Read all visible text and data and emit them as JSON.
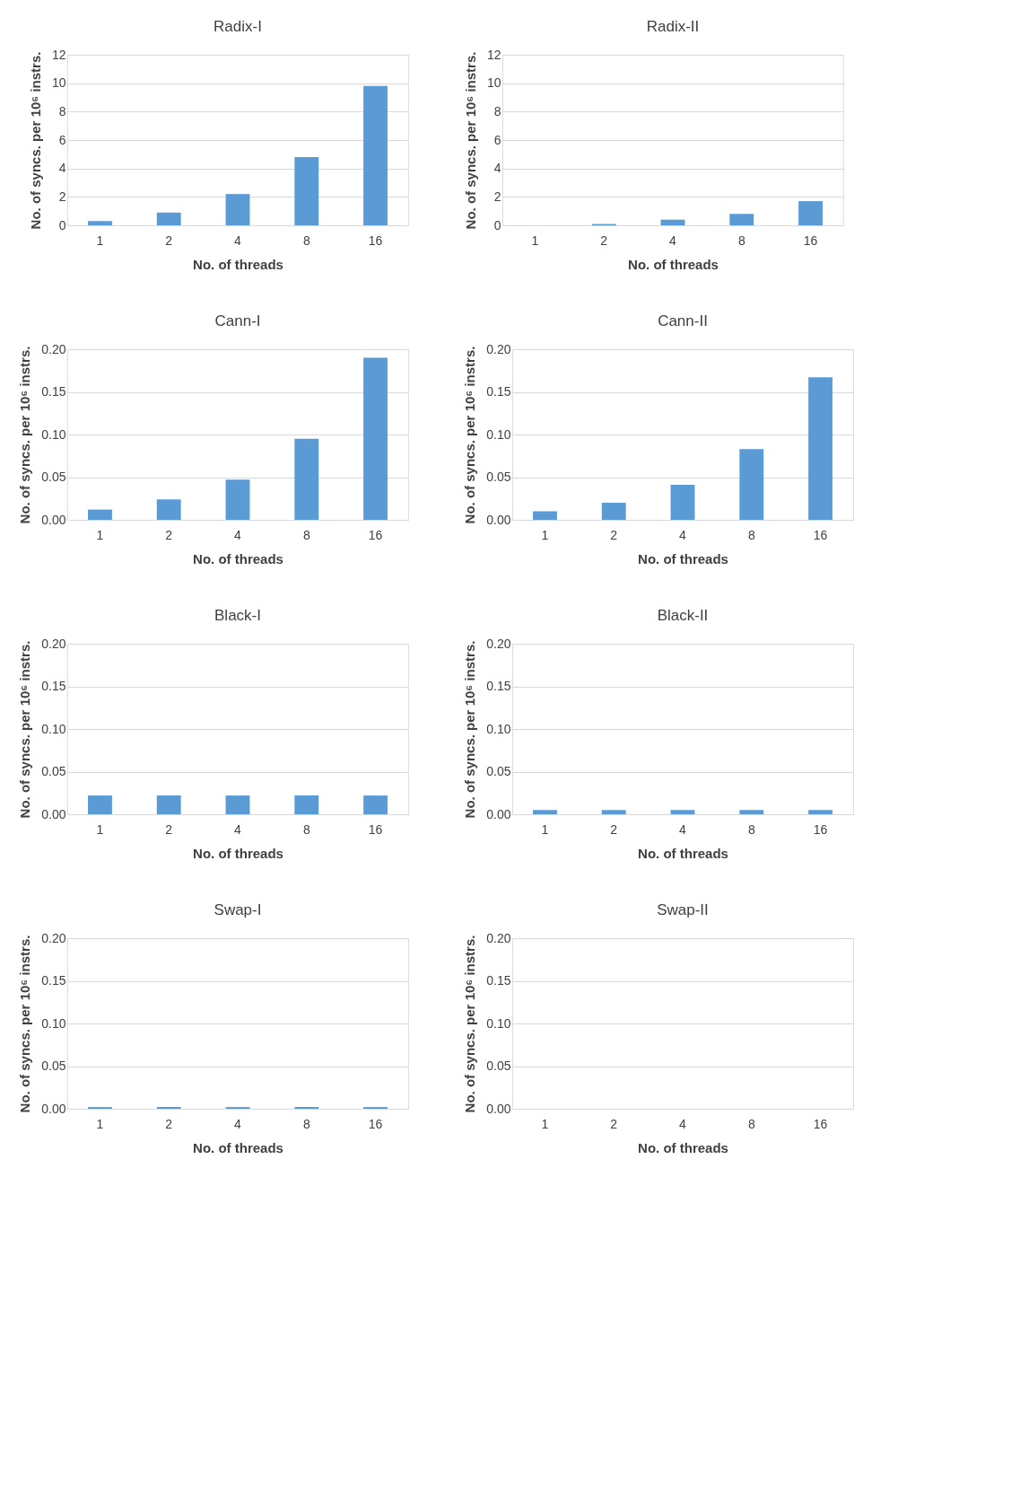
{
  "chart_data": [
    {
      "type": "bar",
      "title": "Radix-I",
      "categories": [
        "1",
        "2",
        "4",
        "8",
        "16"
      ],
      "values": [
        0.3,
        0.9,
        2.2,
        4.8,
        9.8
      ],
      "color": "#5b9bd5",
      "xlabel": "No. of threads",
      "ylabel": "No. of syncs. per 10⁶ instrs.",
      "ylim": [
        0,
        12
      ],
      "yticks": [
        0,
        2,
        4,
        6,
        8,
        10,
        12
      ],
      "grid": "y"
    },
    {
      "type": "bar",
      "title": "Radix-II",
      "categories": [
        "1",
        "2",
        "4",
        "8",
        "16"
      ],
      "values": [
        0,
        0.1,
        0.4,
        0.8,
        1.7
      ],
      "color": "#5b9bd5",
      "xlabel": "No. of threads",
      "ylabel": "No. of syncs. per 10⁶ instrs.",
      "ylim": [
        0,
        12
      ],
      "yticks": [
        0,
        2,
        4,
        6,
        8,
        10,
        12
      ],
      "grid": "y"
    },
    {
      "type": "bar",
      "title": "Cann-I",
      "categories": [
        "1",
        "2",
        "4",
        "8",
        "16"
      ],
      "values": [
        0.012,
        0.024,
        0.047,
        0.095,
        0.19
      ],
      "color": "#5b9bd5",
      "xlabel": "No. of threads",
      "ylabel": "No. of syncs. per 10⁶ instrs.",
      "ylim": [
        0,
        0.2
      ],
      "yticks": [
        {
          "value": 0,
          "label": "0.00"
        },
        {
          "value": 0.05,
          "label": "0.05"
        },
        {
          "value": 0.1,
          "label": "0.10"
        },
        {
          "value": 0.15,
          "label": "0.15"
        },
        {
          "value": 0.2,
          "label": "0.20"
        }
      ],
      "grid": "y"
    },
    {
      "type": "bar",
      "title": "Cann-II",
      "categories": [
        "1",
        "2",
        "4",
        "8",
        "16"
      ],
      "values": [
        0.01,
        0.02,
        0.041,
        0.083,
        0.167
      ],
      "color": "#5b9bd5",
      "xlabel": "No. of threads",
      "ylabel": "No. of syncs. per 10⁶ instrs.",
      "ylim": [
        0,
        0.2
      ],
      "yticks": [
        {
          "value": 0,
          "label": "0.00"
        },
        {
          "value": 0.05,
          "label": "0.05"
        },
        {
          "value": 0.1,
          "label": "0.10"
        },
        {
          "value": 0.15,
          "label": "0.15"
        },
        {
          "value": 0.2,
          "label": "0.20"
        }
      ],
      "grid": "y"
    },
    {
      "type": "bar",
      "title": "Black-I",
      "categories": [
        "1",
        "2",
        "4",
        "8",
        "16"
      ],
      "values": [
        0.022,
        0.022,
        0.022,
        0.022,
        0.022
      ],
      "color": "#5b9bd5",
      "xlabel": "No. of threads",
      "ylabel": "No. of syncs. per 10⁶ instrs.",
      "ylim": [
        0,
        0.2
      ],
      "yticks": [
        {
          "value": 0,
          "label": "0.00"
        },
        {
          "value": 0.05,
          "label": "0.05"
        },
        {
          "value": 0.1,
          "label": "0.10"
        },
        {
          "value": 0.15,
          "label": "0.15"
        },
        {
          "value": 0.2,
          "label": "0.20"
        }
      ],
      "grid": "y"
    },
    {
      "type": "bar",
      "title": "Black-II",
      "categories": [
        "1",
        "2",
        "4",
        "8",
        "16"
      ],
      "values": [
        0.005,
        0.005,
        0.005,
        0.005,
        0.005
      ],
      "color": "#5b9bd5",
      "xlabel": "No. of threads",
      "ylabel": "No. of syncs. per 10⁶ instrs.",
      "ylim": [
        0,
        0.2
      ],
      "yticks": [
        {
          "value": 0,
          "label": "0.00"
        },
        {
          "value": 0.05,
          "label": "0.05"
        },
        {
          "value": 0.1,
          "label": "0.10"
        },
        {
          "value": 0.15,
          "label": "0.15"
        },
        {
          "value": 0.2,
          "label": "0.20"
        }
      ],
      "grid": "y"
    },
    {
      "type": "bar",
      "title": "Swap-I",
      "categories": [
        "1",
        "2",
        "4",
        "8",
        "16"
      ],
      "values": [
        0.002,
        0.002,
        0.002,
        0.002,
        0.002
      ],
      "color": "#5b9bd5",
      "xlabel": "No. of threads",
      "ylabel": "No. of syncs. per 10⁶ instrs.",
      "ylim": [
        0,
        0.2
      ],
      "yticks": [
        {
          "value": 0,
          "label": "0.00"
        },
        {
          "value": 0.05,
          "label": "0.05"
        },
        {
          "value": 0.1,
          "label": "0.10"
        },
        {
          "value": 0.15,
          "label": "0.15"
        },
        {
          "value": 0.2,
          "label": "0.20"
        }
      ],
      "grid": "y"
    },
    {
      "type": "bar",
      "title": "Swap-II",
      "categories": [
        "1",
        "2",
        "4",
        "8",
        "16"
      ],
      "values": [
        0,
        0,
        0,
        0,
        0
      ],
      "color": "#5b9bd5",
      "xlabel": "No. of threads",
      "ylabel": "No. of syncs. per 10⁶ instrs.",
      "ylim": [
        0,
        0.2
      ],
      "yticks": [
        {
          "value": 0,
          "label": "0.00"
        },
        {
          "value": 0.05,
          "label": "0.05"
        },
        {
          "value": 0.1,
          "label": "0.10"
        },
        {
          "value": 0.15,
          "label": "0.15"
        },
        {
          "value": 0.2,
          "label": "0.20"
        }
      ],
      "grid": "y"
    }
  ]
}
